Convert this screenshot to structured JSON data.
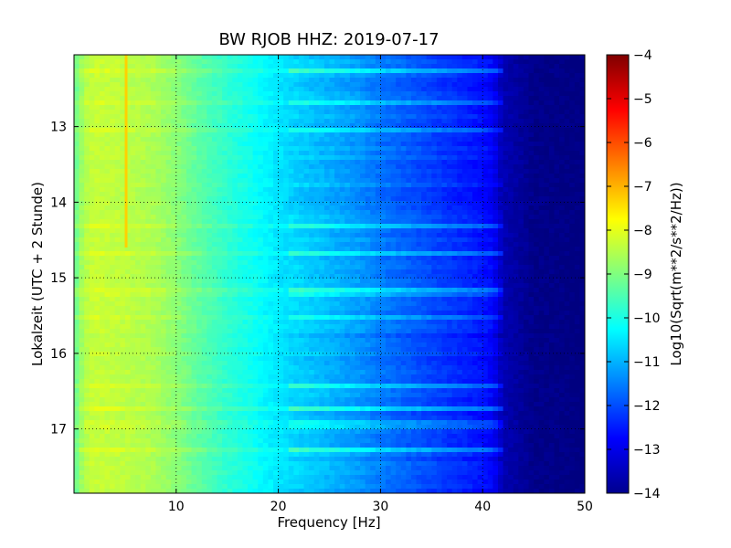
{
  "chart_data": {
    "type": "heatmap",
    "title": "BW RJOB HHZ: 2019-07-17",
    "xlabel": "Frequency [Hz]",
    "ylabel": "Lokalzeit (UTC + 2 Stunde)",
    "xlim": [
      0,
      50
    ],
    "ylim": [
      17.85,
      12.05
    ],
    "x_ticks": [
      10,
      20,
      30,
      40,
      50
    ],
    "y_ticks": [
      13,
      14,
      15,
      16,
      17
    ],
    "y_axis_inverted": true,
    "grid": true,
    "colormap": "jet",
    "colorbar": {
      "label": "Log10(Sqrt(m**2/s**2/Hz))",
      "min": -14,
      "max": -4,
      "ticks": [
        -4,
        -5,
        -6,
        -7,
        -8,
        -9,
        -10,
        -11,
        -12,
        -13,
        -14
      ]
    },
    "profile": {
      "frequency_hz": [
        0,
        1,
        2,
        5,
        8,
        10,
        12,
        15,
        18,
        20,
        22,
        25,
        28,
        30,
        33,
        35,
        38,
        40,
        41,
        42,
        45,
        50
      ],
      "log10_psd": [
        -9.3,
        -8.5,
        -8.3,
        -8.4,
        -8.6,
        -8.9,
        -9.3,
        -9.8,
        -10.2,
        -10.5,
        -10.7,
        -11.0,
        -11.3,
        -11.6,
        -11.9,
        -12.1,
        -12.4,
        -12.6,
        -12.8,
        -13.5,
        -13.9,
        -14.0
      ]
    },
    "annotations": [
      {
        "feature": "narrow line",
        "frequency_hz": 5.1,
        "time_range": [
          12.05,
          14.6
        ],
        "log10_psd": -7.3
      }
    ]
  }
}
